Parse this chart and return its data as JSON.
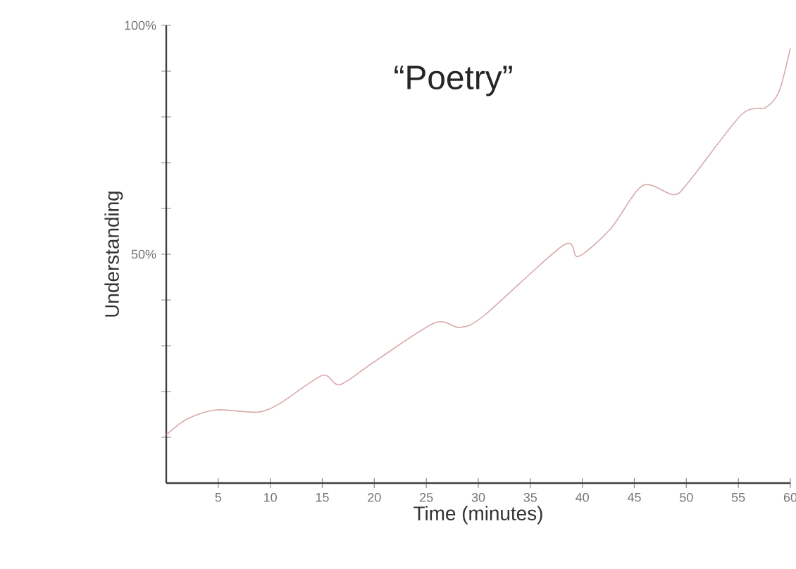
{
  "chart_data": {
    "type": "line",
    "title": "“Poetry”",
    "xlabel": "Time (minutes)",
    "ylabel": "Understanding",
    "xlim": [
      0,
      60
    ],
    "ylim": [
      0,
      100
    ],
    "xticks": [
      5,
      10,
      15,
      20,
      25,
      30,
      35,
      40,
      45,
      50,
      55,
      60
    ],
    "yticks": [
      {
        "value": 10,
        "label": null
      },
      {
        "value": 20,
        "label": null
      },
      {
        "value": 30,
        "label": null
      },
      {
        "value": 40,
        "label": null
      },
      {
        "value": 50,
        "label": "50%"
      },
      {
        "value": 60,
        "label": null
      },
      {
        "value": 70,
        "label": null
      },
      {
        "value": 80,
        "label": null
      },
      {
        "value": 90,
        "label": null
      },
      {
        "value": 100,
        "label": "100%"
      }
    ],
    "marker": "none",
    "series": [
      {
        "color": "#d9aaac",
        "x": [
          0,
          2,
          4.8,
          8.8,
          11,
          15,
          16.7,
          20,
          25.8,
          28.2,
          30.5,
          38.2,
          39.6,
          42.7,
          45.8,
          48.8,
          50.3,
          55.3,
          57.6,
          58.9,
          60
        ],
        "values": [
          10.5,
          14,
          16,
          15.5,
          17.5,
          23.5,
          21.5,
          26.5,
          35,
          34,
          36.5,
          52,
          49.5,
          55.5,
          65,
          63,
          66,
          80.5,
          82,
          85.5,
          95
        ]
      }
    ]
  }
}
